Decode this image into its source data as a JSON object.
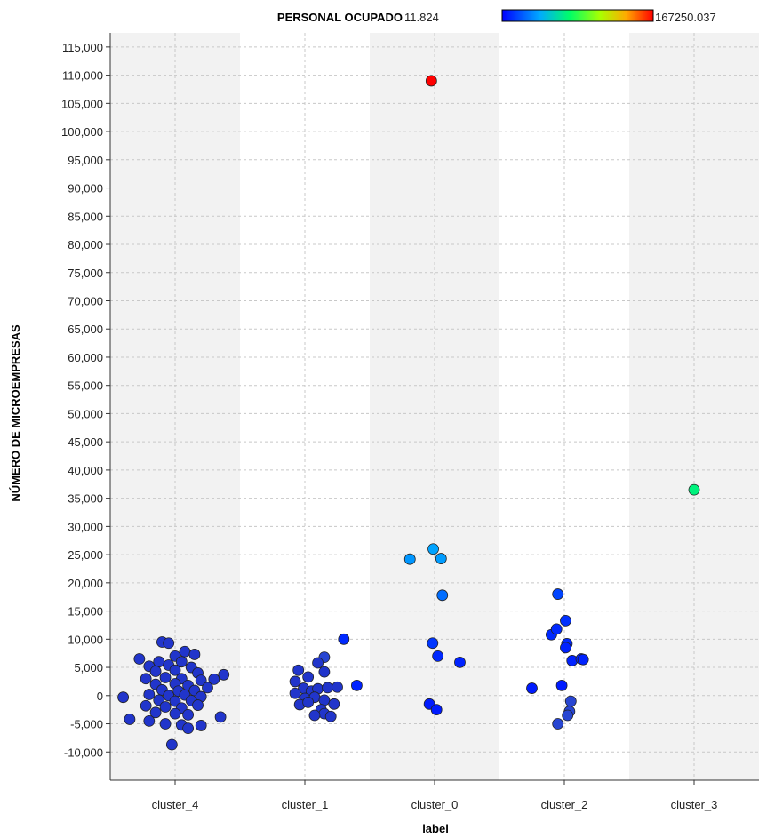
{
  "chart_data": {
    "type": "scatter",
    "title": "",
    "xlabel": "label",
    "ylabel": "NÚMERO DE MICROEMPRESAS",
    "categories": [
      "cluster_4",
      "cluster_1",
      "cluster_0",
      "cluster_2",
      "cluster_3"
    ],
    "ylim": [
      -15000,
      117500
    ],
    "yticks": [
      115000,
      110000,
      105000,
      100000,
      95000,
      90000,
      85000,
      80000,
      75000,
      70000,
      65000,
      60000,
      55000,
      50000,
      45000,
      40000,
      35000,
      30000,
      25000,
      20000,
      15000,
      10000,
      5000,
      0,
      -5000,
      -10000
    ],
    "ytick_labels": [
      "115,000",
      "110,000",
      "105,000",
      "100,000",
      "95,000",
      "90,000",
      "85,000",
      "80,000",
      "75,000",
      "70,000",
      "65,000",
      "60,000",
      "55,000",
      "50,000",
      "45,000",
      "40,000",
      "35,000",
      "30,000",
      "25,000",
      "20,000",
      "15,000",
      "10,000",
      "5,000",
      "0",
      "-5,000",
      "-10,000"
    ],
    "grid": true,
    "color_legend": {
      "label": "PERSONAL OCUPADO",
      "min": "11.824",
      "max": "167250.037",
      "placement": "top-right"
    },
    "points": [
      {
        "x": "cluster_0",
        "j": -0.05,
        "y": 109000,
        "c": 1.0
      },
      {
        "x": "cluster_3",
        "j": 0.0,
        "y": 36500,
        "c": 0.42
      },
      {
        "x": "cluster_0",
        "j": -0.38,
        "y": 24200,
        "c": 0.22
      },
      {
        "x": "cluster_0",
        "j": -0.02,
        "y": 26000,
        "c": 0.24
      },
      {
        "x": "cluster_0",
        "j": 0.1,
        "y": 24300,
        "c": 0.23
      },
      {
        "x": "cluster_0",
        "j": 0.12,
        "y": 17800,
        "c": 0.16
      },
      {
        "x": "cluster_0",
        "j": -0.03,
        "y": 9300,
        "c": 0.08
      },
      {
        "x": "cluster_0",
        "j": 0.05,
        "y": 7000,
        "c": 0.06
      },
      {
        "x": "cluster_0",
        "j": 0.39,
        "y": 5900,
        "c": 0.05
      },
      {
        "x": "cluster_0",
        "j": -0.08,
        "y": -1500,
        "c": 0.04
      },
      {
        "x": "cluster_0",
        "j": 0.03,
        "y": -2500,
        "c": 0.04
      },
      {
        "x": "cluster_2",
        "j": -0.1,
        "y": 18000,
        "c": 0.1
      },
      {
        "x": "cluster_2",
        "j": 0.02,
        "y": 13300,
        "c": 0.07
      },
      {
        "x": "cluster_2",
        "j": -0.2,
        "y": 10800,
        "c": 0.06
      },
      {
        "x": "cluster_2",
        "j": -0.12,
        "y": 11800,
        "c": 0.06
      },
      {
        "x": "cluster_2",
        "j": 0.04,
        "y": 9200,
        "c": 0.06
      },
      {
        "x": "cluster_2",
        "j": 0.02,
        "y": 8500,
        "c": 0.05
      },
      {
        "x": "cluster_2",
        "j": 0.12,
        "y": 6200,
        "c": 0.05
      },
      {
        "x": "cluster_2",
        "j": 0.26,
        "y": 6500,
        "c": 0.05
      },
      {
        "x": "cluster_2",
        "j": 0.29,
        "y": 6400,
        "c": 0.05
      },
      {
        "x": "cluster_2",
        "j": -0.5,
        "y": 1300,
        "c": 0.04
      },
      {
        "x": "cluster_2",
        "j": -0.04,
        "y": 1800,
        "c": 0.04
      },
      {
        "x": "cluster_2",
        "j": 0.1,
        "y": -1000,
        "c": 0.03
      },
      {
        "x": "cluster_2",
        "j": 0.08,
        "y": -2800,
        "c": 0.03
      },
      {
        "x": "cluster_2",
        "j": 0.05,
        "y": -3500,
        "c": 0.03
      },
      {
        "x": "cluster_2",
        "j": -0.1,
        "y": -5000,
        "c": 0.03
      },
      {
        "x": "cluster_1",
        "j": 0.6,
        "y": 10000,
        "c": 0.06
      },
      {
        "x": "cluster_1",
        "j": 0.8,
        "y": 1800,
        "c": 0.05
      },
      {
        "x": "cluster_1",
        "j": 0.3,
        "y": 6800,
        "c": 0.03
      },
      {
        "x": "cluster_1",
        "j": 0.2,
        "y": 5800,
        "c": 0.02
      },
      {
        "x": "cluster_1",
        "j": -0.1,
        "y": 4500,
        "c": 0.02
      },
      {
        "x": "cluster_1",
        "j": 0.3,
        "y": 4200,
        "c": 0.02
      },
      {
        "x": "cluster_1",
        "j": 0.05,
        "y": 3300,
        "c": 0.02
      },
      {
        "x": "cluster_1",
        "j": -0.15,
        "y": 2500,
        "c": 0.02
      },
      {
        "x": "cluster_1",
        "j": -0.02,
        "y": 1300,
        "c": 0.02
      },
      {
        "x": "cluster_1",
        "j": 0.1,
        "y": 800,
        "c": 0.02
      },
      {
        "x": "cluster_1",
        "j": 0.2,
        "y": 1200,
        "c": 0.02
      },
      {
        "x": "cluster_1",
        "j": 0.35,
        "y": 1400,
        "c": 0.02
      },
      {
        "x": "cluster_1",
        "j": 0.5,
        "y": 1500,
        "c": 0.02
      },
      {
        "x": "cluster_1",
        "j": -0.15,
        "y": 400,
        "c": 0.02
      },
      {
        "x": "cluster_1",
        "j": 0.0,
        "y": -500,
        "c": 0.02
      },
      {
        "x": "cluster_1",
        "j": 0.15,
        "y": -300,
        "c": 0.02
      },
      {
        "x": "cluster_1",
        "j": 0.3,
        "y": -800,
        "c": 0.02
      },
      {
        "x": "cluster_1",
        "j": -0.08,
        "y": -1600,
        "c": 0.02
      },
      {
        "x": "cluster_1",
        "j": 0.05,
        "y": -1200,
        "c": 0.02
      },
      {
        "x": "cluster_1",
        "j": 0.25,
        "y": -2500,
        "c": 0.02
      },
      {
        "x": "cluster_1",
        "j": 0.45,
        "y": -1500,
        "c": 0.02
      },
      {
        "x": "cluster_1",
        "j": 0.3,
        "y": -3200,
        "c": 0.02
      },
      {
        "x": "cluster_1",
        "j": 0.4,
        "y": -3700,
        "c": 0.02
      },
      {
        "x": "cluster_1",
        "j": 0.15,
        "y": -3500,
        "c": 0.02
      },
      {
        "x": "cluster_4",
        "j": -0.2,
        "y": 9500,
        "c": 0.02
      },
      {
        "x": "cluster_4",
        "j": -0.1,
        "y": 9300,
        "c": 0.02
      },
      {
        "x": "cluster_4",
        "j": 0.15,
        "y": 7800,
        "c": 0.02
      },
      {
        "x": "cluster_4",
        "j": 0.3,
        "y": 7300,
        "c": 0.02
      },
      {
        "x": "cluster_4",
        "j": 0.0,
        "y": 7000,
        "c": 0.02
      },
      {
        "x": "cluster_4",
        "j": -0.55,
        "y": 6500,
        "c": 0.02
      },
      {
        "x": "cluster_4",
        "j": -0.25,
        "y": 6000,
        "c": 0.02
      },
      {
        "x": "cluster_4",
        "j": 0.1,
        "y": 6000,
        "c": 0.02
      },
      {
        "x": "cluster_4",
        "j": -0.4,
        "y": 5200,
        "c": 0.02
      },
      {
        "x": "cluster_4",
        "j": -0.1,
        "y": 5400,
        "c": 0.02
      },
      {
        "x": "cluster_4",
        "j": 0.25,
        "y": 5000,
        "c": 0.02
      },
      {
        "x": "cluster_4",
        "j": -0.3,
        "y": 4300,
        "c": 0.02
      },
      {
        "x": "cluster_4",
        "j": 0.0,
        "y": 4500,
        "c": 0.02
      },
      {
        "x": "cluster_4",
        "j": 0.35,
        "y": 4000,
        "c": 0.02
      },
      {
        "x": "cluster_4",
        "j": 0.75,
        "y": 3700,
        "c": 0.02
      },
      {
        "x": "cluster_4",
        "j": -0.45,
        "y": 3000,
        "c": 0.02
      },
      {
        "x": "cluster_4",
        "j": -0.15,
        "y": 3200,
        "c": 0.02
      },
      {
        "x": "cluster_4",
        "j": 0.1,
        "y": 3000,
        "c": 0.02
      },
      {
        "x": "cluster_4",
        "j": 0.4,
        "y": 2700,
        "c": 0.02
      },
      {
        "x": "cluster_4",
        "j": 0.6,
        "y": 2900,
        "c": 0.02
      },
      {
        "x": "cluster_4",
        "j": -0.3,
        "y": 2000,
        "c": 0.02
      },
      {
        "x": "cluster_4",
        "j": 0.0,
        "y": 2100,
        "c": 0.02
      },
      {
        "x": "cluster_4",
        "j": 0.2,
        "y": 1800,
        "c": 0.02
      },
      {
        "x": "cluster_4",
        "j": 0.5,
        "y": 1400,
        "c": 0.02
      },
      {
        "x": "cluster_4",
        "j": -0.2,
        "y": 1000,
        "c": 0.02
      },
      {
        "x": "cluster_4",
        "j": 0.05,
        "y": 800,
        "c": 0.02
      },
      {
        "x": "cluster_4",
        "j": 0.3,
        "y": 900,
        "c": 0.02
      },
      {
        "x": "cluster_4",
        "j": -0.4,
        "y": 200,
        "c": 0.02
      },
      {
        "x": "cluster_4",
        "j": -0.1,
        "y": 0,
        "c": 0.02
      },
      {
        "x": "cluster_4",
        "j": 0.15,
        "y": 100,
        "c": 0.02
      },
      {
        "x": "cluster_4",
        "j": 0.4,
        "y": -200,
        "c": 0.02
      },
      {
        "x": "cluster_4",
        "j": -0.8,
        "y": -300,
        "c": 0.02
      },
      {
        "x": "cluster_4",
        "j": -0.25,
        "y": -800,
        "c": 0.02
      },
      {
        "x": "cluster_4",
        "j": 0.0,
        "y": -1000,
        "c": 0.02
      },
      {
        "x": "cluster_4",
        "j": 0.25,
        "y": -900,
        "c": 0.02
      },
      {
        "x": "cluster_4",
        "j": -0.45,
        "y": -1800,
        "c": 0.02
      },
      {
        "x": "cluster_4",
        "j": -0.15,
        "y": -2000,
        "c": 0.02
      },
      {
        "x": "cluster_4",
        "j": 0.1,
        "y": -2200,
        "c": 0.02
      },
      {
        "x": "cluster_4",
        "j": 0.35,
        "y": -1700,
        "c": 0.02
      },
      {
        "x": "cluster_4",
        "j": -0.3,
        "y": -3000,
        "c": 0.02
      },
      {
        "x": "cluster_4",
        "j": 0.0,
        "y": -3200,
        "c": 0.02
      },
      {
        "x": "cluster_4",
        "j": 0.2,
        "y": -3400,
        "c": 0.02
      },
      {
        "x": "cluster_4",
        "j": 0.7,
        "y": -3800,
        "c": 0.02
      },
      {
        "x": "cluster_4",
        "j": -0.7,
        "y": -4200,
        "c": 0.02
      },
      {
        "x": "cluster_4",
        "j": -0.4,
        "y": -4500,
        "c": 0.02
      },
      {
        "x": "cluster_4",
        "j": -0.15,
        "y": -5000,
        "c": 0.02
      },
      {
        "x": "cluster_4",
        "j": 0.1,
        "y": -5200,
        "c": 0.02
      },
      {
        "x": "cluster_4",
        "j": 0.4,
        "y": -5300,
        "c": 0.02
      },
      {
        "x": "cluster_4",
        "j": 0.2,
        "y": -5800,
        "c": 0.02
      },
      {
        "x": "cluster_4",
        "j": -0.05,
        "y": -8700,
        "c": 0.02
      }
    ]
  }
}
